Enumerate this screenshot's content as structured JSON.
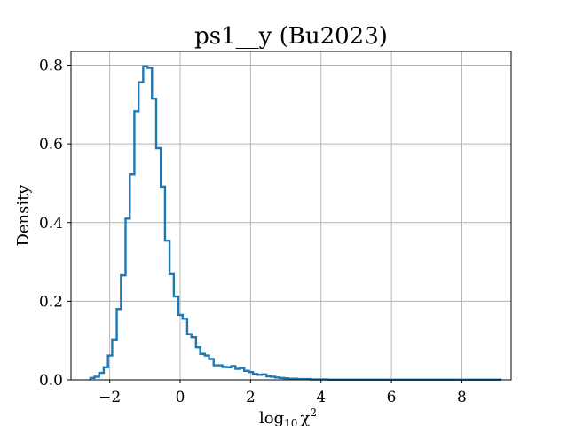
{
  "chart_data": {
    "type": "histogram",
    "title": "ps1__y (Bu2023)",
    "xlabel": "log10 χ²",
    "xlabel_main": "log",
    "xlabel_sub": "10",
    "xlabel_var": "χ",
    "xlabel_sup": "2",
    "ylabel": "Density",
    "xlim": [
      -3.1,
      9.4
    ],
    "ylim": [
      0,
      0.835
    ],
    "xticks": [
      -2,
      0,
      2,
      4,
      6,
      8
    ],
    "xtick_labels": [
      "−2",
      "0",
      "2",
      "4",
      "6",
      "8"
    ],
    "yticks": [
      0.0,
      0.2,
      0.4,
      0.6,
      0.8
    ],
    "ytick_labels": [
      "0.0",
      "0.2",
      "0.4",
      "0.6",
      "0.8"
    ],
    "grid": true,
    "color": "#1f77b4",
    "bin_edges": [
      -2.55,
      -2.43,
      -2.3,
      -2.17,
      -2.05,
      -1.93,
      -1.8,
      -1.68,
      -1.55,
      -1.43,
      -1.3,
      -1.18,
      -1.05,
      -0.93,
      -0.8,
      -0.68,
      -0.55,
      -0.43,
      -0.3,
      -0.18,
      -0.05,
      0.07,
      0.2,
      0.32,
      0.45,
      0.57,
      0.7,
      0.82,
      0.95,
      1.07,
      1.2,
      1.32,
      1.45,
      1.57,
      1.7,
      1.82,
      1.95,
      2.07,
      2.2,
      2.32,
      2.45,
      2.57,
      2.7,
      2.82,
      2.95,
      3.07,
      3.2,
      3.32,
      3.45,
      3.57,
      3.7,
      3.82,
      3.95,
      4.07,
      4.2,
      9.1
    ],
    "values": [
      0.005,
      0.008,
      0.018,
      0.032,
      0.062,
      0.102,
      0.18,
      0.266,
      0.41,
      0.523,
      0.683,
      0.757,
      0.797,
      0.793,
      0.715,
      0.589,
      0.49,
      0.354,
      0.269,
      0.212,
      0.165,
      0.155,
      0.116,
      0.108,
      0.083,
      0.066,
      0.062,
      0.053,
      0.037,
      0.037,
      0.033,
      0.032,
      0.035,
      0.028,
      0.03,
      0.023,
      0.02,
      0.015,
      0.013,
      0.014,
      0.009,
      0.008,
      0.006,
      0.005,
      0.004,
      0.003,
      0.003,
      0.002,
      0.002,
      0.002,
      0.001,
      0.001,
      0.001,
      0.001,
      0.0005
    ]
  }
}
